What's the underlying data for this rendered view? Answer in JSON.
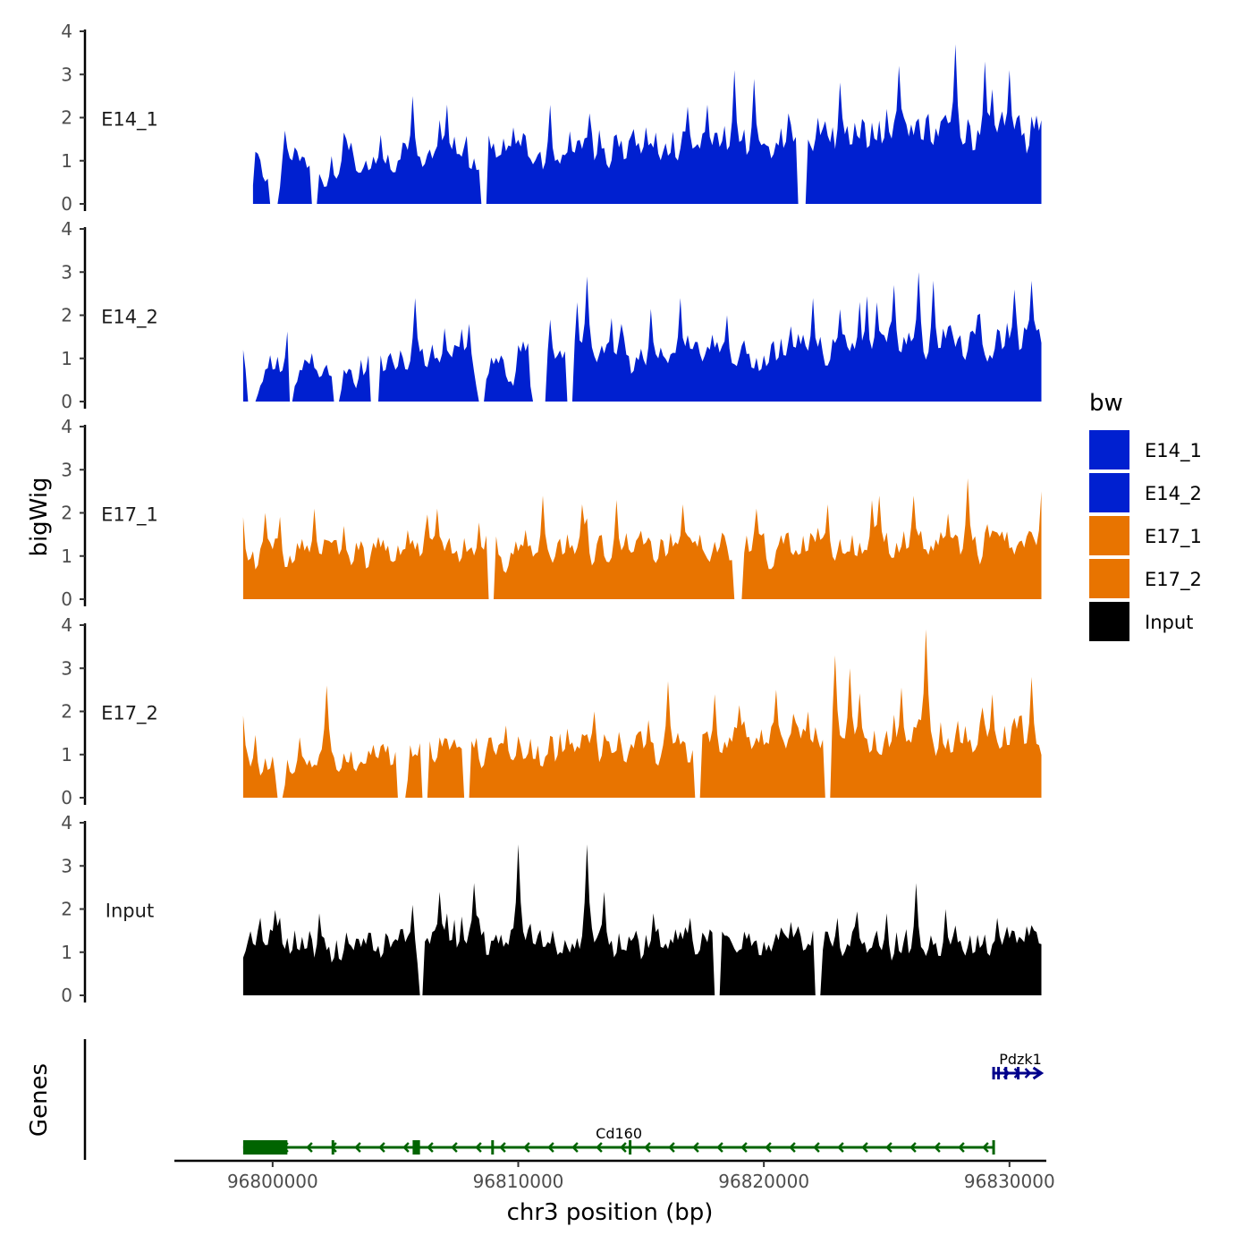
{
  "chart_data": {
    "type": "area",
    "xlabel": "chr3 position (bp)",
    "ylabel": "bigWig",
    "genes_label": "Genes",
    "xlim": [
      96796000,
      96831500
    ],
    "data_range": [
      96798800,
      96831300
    ],
    "x_ticks": [
      96800000,
      96810000,
      96820000,
      96830000
    ],
    "x_tick_labels": [
      "96800000",
      "96810000",
      "96820000",
      "96830000"
    ],
    "ylim": [
      0,
      4
    ],
    "y_ticks": [
      0,
      1,
      2,
      3,
      4
    ],
    "y_tick_labels": [
      "0",
      "1",
      "2",
      "3",
      "4"
    ],
    "colors": {
      "E14": "#0020d0",
      "E17": "#e87400",
      "Input": "#000000",
      "gene_cd160": "#006400",
      "gene_pdzk1": "#00008b"
    },
    "legend": {
      "title": "bw",
      "position": "right",
      "entries": [
        {
          "label": "E14_1",
          "color": "#0020d0"
        },
        {
          "label": "E14_2",
          "color": "#0020d0"
        },
        {
          "label": "E17_1",
          "color": "#e87400"
        },
        {
          "label": "E17_2",
          "color": "#e87400"
        },
        {
          "label": "Input",
          "color": "#000000"
        }
      ]
    },
    "series": [
      {
        "name": "E14_1",
        "color": "#0020d0",
        "start": 96799200,
        "seed": 11,
        "base": 0.55,
        "amp": 1.2,
        "trend": 0.9,
        "zeros": [
          [
            96799900,
            96800200
          ],
          [
            96801600,
            96801800
          ],
          [
            96808500,
            96808700
          ],
          [
            96821400,
            96821700
          ]
        ],
        "peaks": [
          [
            96800500,
            1.7
          ],
          [
            96803000,
            1.5
          ],
          [
            96804400,
            1.6
          ],
          [
            96805700,
            2.5
          ],
          [
            96807100,
            2.3
          ],
          [
            96808700,
            2.2
          ],
          [
            96812900,
            2.1
          ],
          [
            96817700,
            2.3
          ],
          [
            96818800,
            3.1
          ],
          [
            96819600,
            2.9
          ],
          [
            96821000,
            2.1
          ],
          [
            96822200,
            2.0
          ],
          [
            96825000,
            2.2
          ],
          [
            96825500,
            3.2
          ],
          [
            96827800,
            3.7
          ],
          [
            96829000,
            3.3
          ],
          [
            96830000,
            3.1
          ]
        ]
      },
      {
        "name": "E14_2",
        "color": "#0020d0",
        "start": 96798800,
        "seed": 23,
        "base": 0.45,
        "amp": 1.1,
        "trend": 0.7,
        "zeros": [
          [
            96799000,
            96799300
          ],
          [
            96800700,
            96800800
          ],
          [
            96802500,
            96802700
          ],
          [
            96804000,
            96804300
          ],
          [
            96808400,
            96808600
          ],
          [
            96810600,
            96811100
          ],
          [
            96812000,
            96812200
          ]
        ],
        "peaks": [
          [
            96798800,
            1.2
          ],
          [
            96804300,
            1.7
          ],
          [
            96805800,
            2.4
          ],
          [
            96807000,
            1.7
          ],
          [
            96808000,
            1.8
          ],
          [
            96811300,
            1.9
          ],
          [
            96812400,
            2.3
          ],
          [
            96812800,
            2.9
          ],
          [
            96814200,
            1.8
          ],
          [
            96816600,
            2.4
          ],
          [
            96818500,
            2.0
          ],
          [
            96822000,
            2.4
          ],
          [
            96824600,
            2.3
          ],
          [
            96825300,
            2.7
          ],
          [
            96826300,
            3.0
          ],
          [
            96826900,
            2.8
          ],
          [
            96828700,
            2.0
          ],
          [
            96830200,
            2.6
          ],
          [
            96830900,
            2.8
          ]
        ]
      },
      {
        "name": "E17_1",
        "color": "#e87400",
        "start": 96798800,
        "seed": 37,
        "base": 0.75,
        "amp": 1.0,
        "trend": 0.3,
        "zeros": [
          [
            96808800,
            96809000
          ],
          [
            96818800,
            96819100
          ]
        ],
        "peaks": [
          [
            96798800,
            1.9
          ],
          [
            96799700,
            2.0
          ],
          [
            96801700,
            2.1
          ],
          [
            96802900,
            1.7
          ],
          [
            96805500,
            1.6
          ],
          [
            96806700,
            2.1
          ],
          [
            96811000,
            2.4
          ],
          [
            96812600,
            2.2
          ],
          [
            96814000,
            2.3
          ],
          [
            96816700,
            2.2
          ],
          [
            96819700,
            2.1
          ],
          [
            96822600,
            2.2
          ],
          [
            96824700,
            2.4
          ],
          [
            96826100,
            2.4
          ],
          [
            96828300,
            2.8
          ],
          [
            96831300,
            2.5
          ]
        ]
      },
      {
        "name": "E17_2",
        "color": "#e87400",
        "start": 96798800,
        "seed": 53,
        "base": 0.6,
        "amp": 1.0,
        "trend": 0.7,
        "zeros": [
          [
            96800200,
            96800400
          ],
          [
            96805100,
            96805400
          ],
          [
            96806100,
            96806300
          ],
          [
            96807800,
            96808000
          ],
          [
            96817200,
            96817400
          ],
          [
            96822500,
            96822700
          ]
        ],
        "peaks": [
          [
            96798800,
            1.9
          ],
          [
            96801100,
            1.4
          ],
          [
            96802200,
            2.6
          ],
          [
            96808900,
            1.4
          ],
          [
            96812000,
            1.6
          ],
          [
            96813100,
            2.0
          ],
          [
            96815300,
            1.8
          ],
          [
            96816100,
            2.7
          ],
          [
            96818000,
            2.4
          ],
          [
            96821800,
            2.0
          ],
          [
            96822900,
            3.3
          ],
          [
            96823500,
            3.0
          ],
          [
            96826600,
            3.9
          ],
          [
            96829300,
            2.4
          ],
          [
            96830900,
            2.8
          ]
        ]
      },
      {
        "name": "Input",
        "color": "#000000",
        "start": 96798800,
        "seed": 71,
        "base": 0.95,
        "amp": 0.9,
        "trend": 0.1,
        "zeros": [
          [
            96806000,
            96806100
          ],
          [
            96818000,
            96818200
          ],
          [
            96822100,
            96822300
          ]
        ],
        "peaks": [
          [
            96799500,
            1.8
          ],
          [
            96800300,
            1.8
          ],
          [
            96805700,
            2.1
          ],
          [
            96806800,
            2.4
          ],
          [
            96807100,
            1.9
          ],
          [
            96808200,
            2.6
          ],
          [
            96810000,
            3.5
          ],
          [
            96812800,
            3.5
          ],
          [
            96813500,
            2.4
          ],
          [
            96815500,
            1.9
          ],
          [
            96817000,
            1.8
          ],
          [
            96823000,
            1.8
          ],
          [
            96825000,
            1.9
          ],
          [
            96826200,
            2.6
          ],
          [
            96827400,
            2.0
          ],
          [
            96829500,
            1.8
          ],
          [
            96830700,
            1.6
          ]
        ]
      }
    ],
    "genes": [
      {
        "name": "Cd160",
        "strand": "-",
        "row": 0,
        "color": "#006400",
        "start": 96798800,
        "end": 96829400,
        "exons": [
          [
            96798800,
            96800600
          ],
          [
            96802400,
            96802500
          ],
          [
            96805700,
            96806000
          ],
          [
            96808900,
            96809000
          ],
          [
            96814500,
            96814550
          ],
          [
            96829300,
            96829400
          ]
        ]
      },
      {
        "name": "Pdzk1",
        "strand": "+",
        "row": 1,
        "color": "#00008b",
        "start": 96829300,
        "end": 96831300,
        "exons": [
          [
            96829300,
            96829350
          ],
          [
            96829500,
            96829550
          ],
          [
            96829800,
            96829850
          ],
          [
            96830300,
            96830350
          ]
        ]
      }
    ]
  }
}
